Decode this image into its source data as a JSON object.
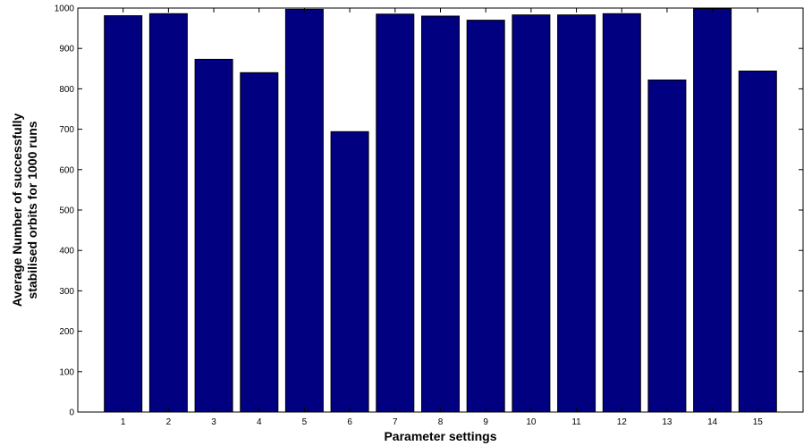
{
  "chart_data": {
    "type": "bar",
    "categories": [
      "1",
      "2",
      "3",
      "4",
      "5",
      "6",
      "7",
      "8",
      "9",
      "10",
      "11",
      "12",
      "13",
      "14",
      "15"
    ],
    "values": [
      981,
      986,
      873,
      840,
      997,
      694,
      985,
      980,
      970,
      983,
      983,
      986,
      822,
      999,
      844
    ],
    "xlabel": "Parameter settings",
    "ylabel_lines": [
      "Average Number of successfully",
      "stabilised orbits for 1000 runs"
    ],
    "ylim": [
      0,
      1000
    ],
    "yticks": [
      "0",
      "100",
      "200",
      "300",
      "400",
      "500",
      "600",
      "700",
      "800",
      "900",
      "1000"
    ],
    "bar_color": "#000080",
    "grid": false,
    "legend": "none"
  }
}
